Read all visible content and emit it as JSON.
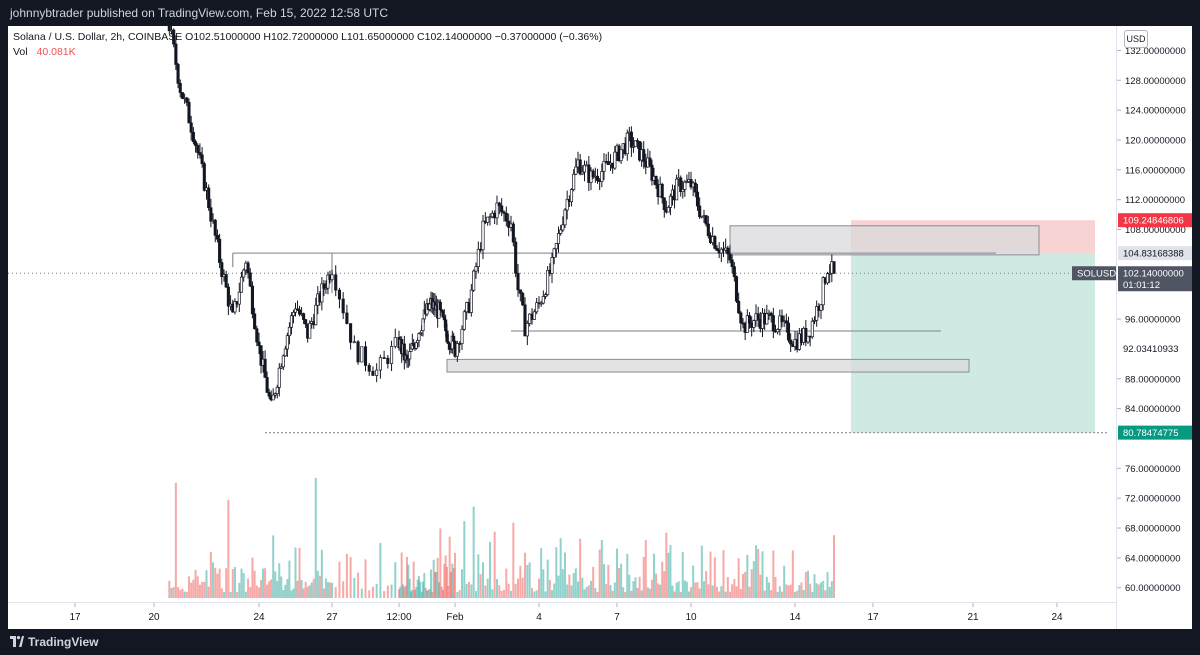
{
  "header": {
    "publisher_line": "johnnybtrader published on TradingView.com, Feb 15, 2022 12:58 UTC"
  },
  "footer": {
    "brand": "TradingView"
  },
  "legend": {
    "symbol_line": "Solana / U.S. Dollar, 2h, COINBASE",
    "open": "O102.51000000",
    "high": "H102.72000000",
    "low": "L101.65000000",
    "close": "C102.14000000",
    "change": "−0.37000000 (−0.36%)",
    "vol_label": "Vol",
    "vol_value": "40.081K"
  },
  "axis": {
    "currency": "USD"
  },
  "chart_data": {
    "type": "candlestick",
    "symbol": "SOLUSD",
    "exchange": "COINBASE",
    "interval": "2h",
    "y_ticks": [
      "132.00000000",
      "128.00000000",
      "124.00000000",
      "120.00000000",
      "116.00000000",
      "112.00000000",
      "108.00000000",
      "96.00000000",
      "88.00000000",
      "84.00000000",
      "76.00000000",
      "72.00000000",
      "68.00000000",
      "64.00000000",
      "60.00000000"
    ],
    "x_ticks": [
      "17",
      "20",
      "24",
      "27",
      "12:00",
      "Feb",
      "4",
      "7",
      "10",
      "14",
      "17",
      "21",
      "24"
    ],
    "ylim": [
      59,
      133.5
    ],
    "close_path": [
      {
        "x": "Jan 14 18:00",
        "y": 143
      },
      {
        "x": "Jan 16 00:00",
        "y": 140
      },
      {
        "x": "Jan 17 06:00",
        "y": 141
      },
      {
        "x": "Jan 18 12:00",
        "y": 140
      },
      {
        "x": "Jan 19 18:00",
        "y": 139
      },
      {
        "x": "Jan 20 12:00",
        "y": 137
      },
      {
        "x": "Jan 21 00:00",
        "y": 127
      },
      {
        "x": "Jan 21 12:00",
        "y": 121
      },
      {
        "x": "Jan 22 00:00",
        "y": 113
      },
      {
        "x": "Jan 22 12:00",
        "y": 104
      },
      {
        "x": "Jan 23 00:00",
        "y": 96
      },
      {
        "x": "Jan 23 12:00",
        "y": 104
      },
      {
        "x": "Jan 24 00:00",
        "y": 92
      },
      {
        "x": "Jan 24 12:00",
        "y": 84
      },
      {
        "x": "Jan 25 00:00",
        "y": 92
      },
      {
        "x": "Jan 25 12:00",
        "y": 98
      },
      {
        "x": "Jan 26 00:00",
        "y": 94
      },
      {
        "x": "Jan 26 12:00",
        "y": 99
      },
      {
        "x": "Jan 27 00:00",
        "y": 103
      },
      {
        "x": "Jan 27 12:00",
        "y": 92
      },
      {
        "x": "Jan 28 00:00",
        "y": 89
      },
      {
        "x": "Jan 28 12:00",
        "y": 93
      },
      {
        "x": "Jan 29 00:00",
        "y": 90
      },
      {
        "x": "Jan 29 12:00",
        "y": 93
      },
      {
        "x": "Jan 30 00:00",
        "y": 96
      },
      {
        "x": "Jan 30 12:00",
        "y": 98
      },
      {
        "x": "Jan 31 00:00",
        "y": 97
      },
      {
        "x": "Jan 31 12:00",
        "y": 94
      },
      {
        "x": "Feb 1 00:00",
        "y": 92
      },
      {
        "x": "Feb 1 12:00",
        "y": 98
      },
      {
        "x": "Feb 2 00:00",
        "y": 108
      },
      {
        "x": "Feb 2 12:00",
        "y": 111
      },
      {
        "x": "Feb 3 00:00",
        "y": 109
      },
      {
        "x": "Feb 3 06:00",
        "y": 100
      },
      {
        "x": "Feb 3 12:00",
        "y": 95
      },
      {
        "x": "Feb 4 00:00",
        "y": 98
      },
      {
        "x": "Feb 4 12:00",
        "y": 103
      },
      {
        "x": "Feb 5 00:00",
        "y": 111
      },
      {
        "x": "Feb 5 12:00",
        "y": 117
      },
      {
        "x": "Feb 6 00:00",
        "y": 115
      },
      {
        "x": "Feb 6 12:00",
        "y": 116
      },
      {
        "x": "Feb 7 00:00",
        "y": 118
      },
      {
        "x": "Feb 7 12:00",
        "y": 120
      },
      {
        "x": "Feb 8 00:00",
        "y": 118
      },
      {
        "x": "Feb 8 12:00",
        "y": 115
      },
      {
        "x": "Feb 9 00:00",
        "y": 111
      },
      {
        "x": "Feb 9 12:00",
        "y": 114
      },
      {
        "x": "Feb 10 00:00",
        "y": 114
      },
      {
        "x": "Feb 10 12:00",
        "y": 109
      },
      {
        "x": "Feb 11 00:00",
        "y": 106
      },
      {
        "x": "Feb 11 12:00",
        "y": 104
      },
      {
        "x": "Feb 12 00:00",
        "y": 95
      },
      {
        "x": "Feb 12 12:00",
        "y": 96
      },
      {
        "x": "Feb 13 00:00",
        "y": 96
      },
      {
        "x": "Feb 13 12:00",
        "y": 95
      },
      {
        "x": "Feb 14 00:00",
        "y": 93
      },
      {
        "x": "Feb 14 12:00",
        "y": 94
      },
      {
        "x": "Feb 15 00:00",
        "y": 99
      },
      {
        "x": "Feb 15 06:00",
        "y": 103
      },
      {
        "x": "Feb 15 12:00",
        "y": 102.14
      }
    ],
    "levels": [
      {
        "price": 104.83168388,
        "label": "104.83168388",
        "kind": "horizontal-line"
      },
      {
        "price": 94.4,
        "kind": "horizontal-line"
      },
      {
        "price": 80.78474775,
        "kind": "horizontal-line"
      }
    ],
    "zones": [
      {
        "kind": "supply-box",
        "y_top": 108.5,
        "y_bottom": 104.6
      },
      {
        "kind": "demand-box",
        "y_top": 90.6,
        "y_bottom": 88.9
      }
    ],
    "position": {
      "kind": "short",
      "stop": "109.24846806",
      "entry": "104.83168388",
      "target": "80.78474775",
      "stop_value": 109.24846806,
      "entry_value": 104.83168388,
      "target_value": 80.78474775
    },
    "current_price": {
      "label": "SOLUSD",
      "value": "102.14000000",
      "countdown": "01:01:12",
      "value_num": 102.14
    },
    "marked_price": {
      "value": "92.03410933",
      "value_num": 92.03410933
    },
    "volume": {
      "series_name": "Vol",
      "last": "40.081K"
    },
    "colors": {
      "up": "#26a69a",
      "down": "#ef5350",
      "candle": "#131722",
      "stop_zone": "#f8d3d3",
      "target_zone": "#cfe9e3",
      "box": "#d9d9dc",
      "line": "#9598a1",
      "stop_label_bg": "#f23645",
      "target_label_bg": "#089981",
      "price_label_bg": "#4f5562"
    }
  }
}
